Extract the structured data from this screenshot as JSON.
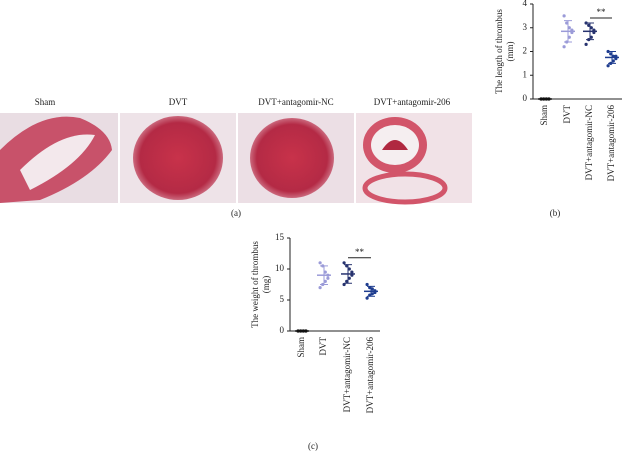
{
  "figure": {
    "panel_a": {
      "label": "(a)",
      "captions": [
        "Sham",
        "DVT",
        "DVT+antagomir-NC",
        "DVT+antagomir-206"
      ]
    }
  },
  "chart_data": [
    {
      "type": "scatter",
      "panel": "(b)",
      "ylabel": [
        "The length of thrombus",
        "(mm)"
      ],
      "categories": [
        "Sham",
        "DVT",
        "DVT+antagomir-NC",
        "DVT+antagomir-206"
      ],
      "colors": [
        "#111111",
        "#9b9bd8",
        "#27336f",
        "#1f3d8f"
      ],
      "means": [
        0,
        2.85,
        2.85,
        1.75
      ],
      "sd": [
        0,
        0.45,
        0.35,
        0.25
      ],
      "points": [
        [
          0,
          0,
          0,
          0,
          0,
          0,
          0,
          0
        ],
        [
          3.5,
          3.2,
          3.0,
          2.9,
          2.8,
          2.6,
          2.4,
          2.2
        ],
        [
          3.2,
          3.1,
          3.0,
          2.9,
          2.8,
          2.6,
          2.5,
          2.3
        ],
        [
          2.0,
          1.9,
          1.8,
          1.8,
          1.7,
          1.6,
          1.5,
          1.4
        ]
      ],
      "ylim": [
        0,
        4
      ],
      "yticks": [
        0,
        1,
        2,
        3,
        4
      ],
      "annotation": {
        "text": "**",
        "between": [
          2,
          3
        ]
      }
    },
    {
      "type": "scatter",
      "panel": "(c)",
      "ylabel": [
        "The weight of thrombus",
        "(mg)"
      ],
      "categories": [
        "Sham",
        "DVT",
        "DVT+antagomir-NC",
        "DVT+antagomir-206"
      ],
      "colors": [
        "#111111",
        "#9b9bd8",
        "#27336f",
        "#1f3d8f"
      ],
      "means": [
        0,
        9.0,
        9.2,
        6.4
      ],
      "sd": [
        0,
        1.5,
        1.5,
        0.8
      ],
      "points": [
        [
          0,
          0,
          0,
          0,
          0,
          0,
          0,
          0
        ],
        [
          11,
          10.5,
          9.5,
          9,
          8.5,
          8,
          7.5,
          7
        ],
        [
          11,
          10.5,
          10,
          9.5,
          9,
          8.5,
          8,
          7.5
        ],
        [
          7.5,
          7,
          6.8,
          6.5,
          6.2,
          6,
          5.8,
          5.3
        ]
      ],
      "ylim": [
        0,
        15
      ],
      "yticks": [
        0,
        5,
        10,
        15
      ],
      "annotation": {
        "text": "**",
        "between": [
          2,
          3
        ]
      }
    }
  ]
}
